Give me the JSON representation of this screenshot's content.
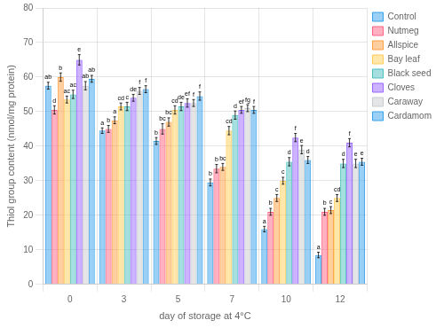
{
  "chart_data": {
    "type": "bar",
    "xlabel": "day of storage at 4°C",
    "ylabel": "Thiol group content (nmol/mg protein)",
    "categories": [
      "0",
      "3",
      "5",
      "7",
      "10",
      "12"
    ],
    "series": [
      {
        "name": "Control",
        "values": [
          57.5,
          44.5,
          41.5,
          29.5,
          16.0,
          8.5
        ],
        "errors": [
          1.0,
          0.8,
          1.0,
          1.0,
          0.8,
          0.8
        ],
        "value_labels": [
          "ab",
          "a",
          "b",
          "b",
          "a",
          "a"
        ]
      },
      {
        "name": "Nutmeg",
        "values": [
          50.5,
          45.0,
          45.0,
          33.5,
          21.0,
          21.0
        ],
        "errors": [
          1.2,
          1.0,
          1.5,
          1.2,
          1.0,
          1.0
        ],
        "value_labels": [
          "d",
          "b",
          "bc",
          "b",
          "b",
          "b"
        ]
      },
      {
        "name": "Allspice",
        "values": [
          60.0,
          47.5,
          47.0,
          34.0,
          25.0,
          21.5
        ],
        "errors": [
          1.2,
          1.0,
          1.2,
          1.0,
          1.0,
          1.0
        ],
        "value_labels": [
          "b",
          "a",
          "bc",
          "bc",
          "c",
          "c"
        ]
      },
      {
        "name": "Bay leaf",
        "values": [
          53.5,
          51.5,
          50.5,
          44.5,
          30.0,
          25.0
        ],
        "errors": [
          1.0,
          1.0,
          1.2,
          1.2,
          1.0,
          1.0
        ],
        "value_labels": [
          "ac",
          "cd",
          "cd",
          "cd",
          "c",
          "cd"
        ]
      },
      {
        "name": "Black seed",
        "values": [
          55.0,
          51.5,
          51.5,
          49.0,
          35.5,
          35.0
        ],
        "errors": [
          1.2,
          1.2,
          1.2,
          1.2,
          1.2,
          1.2
        ],
        "value_labels": [
          "ac",
          "c",
          "de",
          "d",
          "d",
          "d"
        ]
      },
      {
        "name": "Cloves",
        "values": [
          65.0,
          54.0,
          52.5,
          50.5,
          42.5,
          41.0
        ],
        "errors": [
          1.5,
          1.0,
          1.2,
          1.0,
          1.2,
          1.2
        ],
        "value_labels": [
          "e",
          "de",
          "ef",
          "ef",
          "f",
          "f"
        ]
      },
      {
        "name": "Caraway",
        "values": [
          57.5,
          56.0,
          52.5,
          51.0,
          39.0,
          35.0
        ],
        "errors": [
          1.2,
          1.0,
          1.0,
          1.0,
          1.2,
          1.2
        ],
        "value_labels": [
          "ab",
          "f",
          "f",
          "fg",
          "e",
          "e"
        ]
      },
      {
        "name": "Cardamom",
        "values": [
          59.5,
          56.5,
          54.5,
          50.5,
          36.0,
          35.5
        ],
        "errors": [
          1.0,
          1.0,
          1.2,
          1.0,
          1.0,
          1.0
        ],
        "value_labels": [
          "ab",
          "f",
          "f",
          "f",
          "d",
          "e"
        ]
      }
    ],
    "ylim": [
      0,
      80
    ],
    "yticks": [
      0,
      10,
      20,
      30,
      40,
      50,
      60,
      70,
      80
    ],
    "grid": true,
    "legend": "right"
  }
}
